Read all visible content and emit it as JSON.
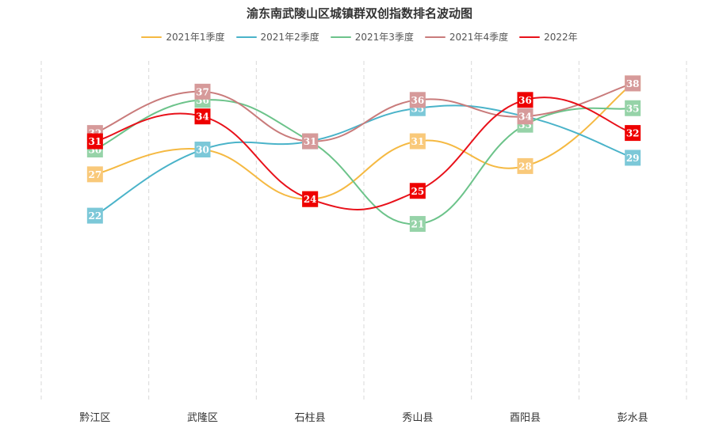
{
  "chart_data": {
    "type": "line",
    "title": "渝东南武陵山区城镇群双创指数排名波动图",
    "categories": [
      "黔江区",
      "武隆区",
      "石柱县",
      "秀山县",
      "酉阳县",
      "彭水县"
    ],
    "series": [
      {
        "name": "2021年1季度",
        "color": "#f5b942",
        "labelColor": "#f9c97a",
        "values": [
          27,
          30,
          24,
          31,
          28,
          38
        ]
      },
      {
        "name": "2021年2季度",
        "color": "#4ab3c9",
        "labelColor": "#7cc8d8",
        "values": [
          22,
          30,
          31,
          35,
          34,
          29
        ]
      },
      {
        "name": "2021年3季度",
        "color": "#6cc38a",
        "labelColor": "#96d3a8",
        "values": [
          30,
          36,
          31,
          21,
          33,
          35
        ]
      },
      {
        "name": "2021年4季度",
        "color": "#c97b7b",
        "labelColor": "#d69a9a",
        "values": [
          32,
          37,
          31,
          36,
          34,
          38
        ]
      },
      {
        "name": "2022年",
        "color": "#e8111a",
        "labelColor": "#ee0000",
        "values": [
          31,
          34,
          24,
          25,
          36,
          32
        ]
      }
    ],
    "ylim": [
      0,
      40
    ],
    "grid": "vertical-dashed",
    "legend_position": "top"
  }
}
